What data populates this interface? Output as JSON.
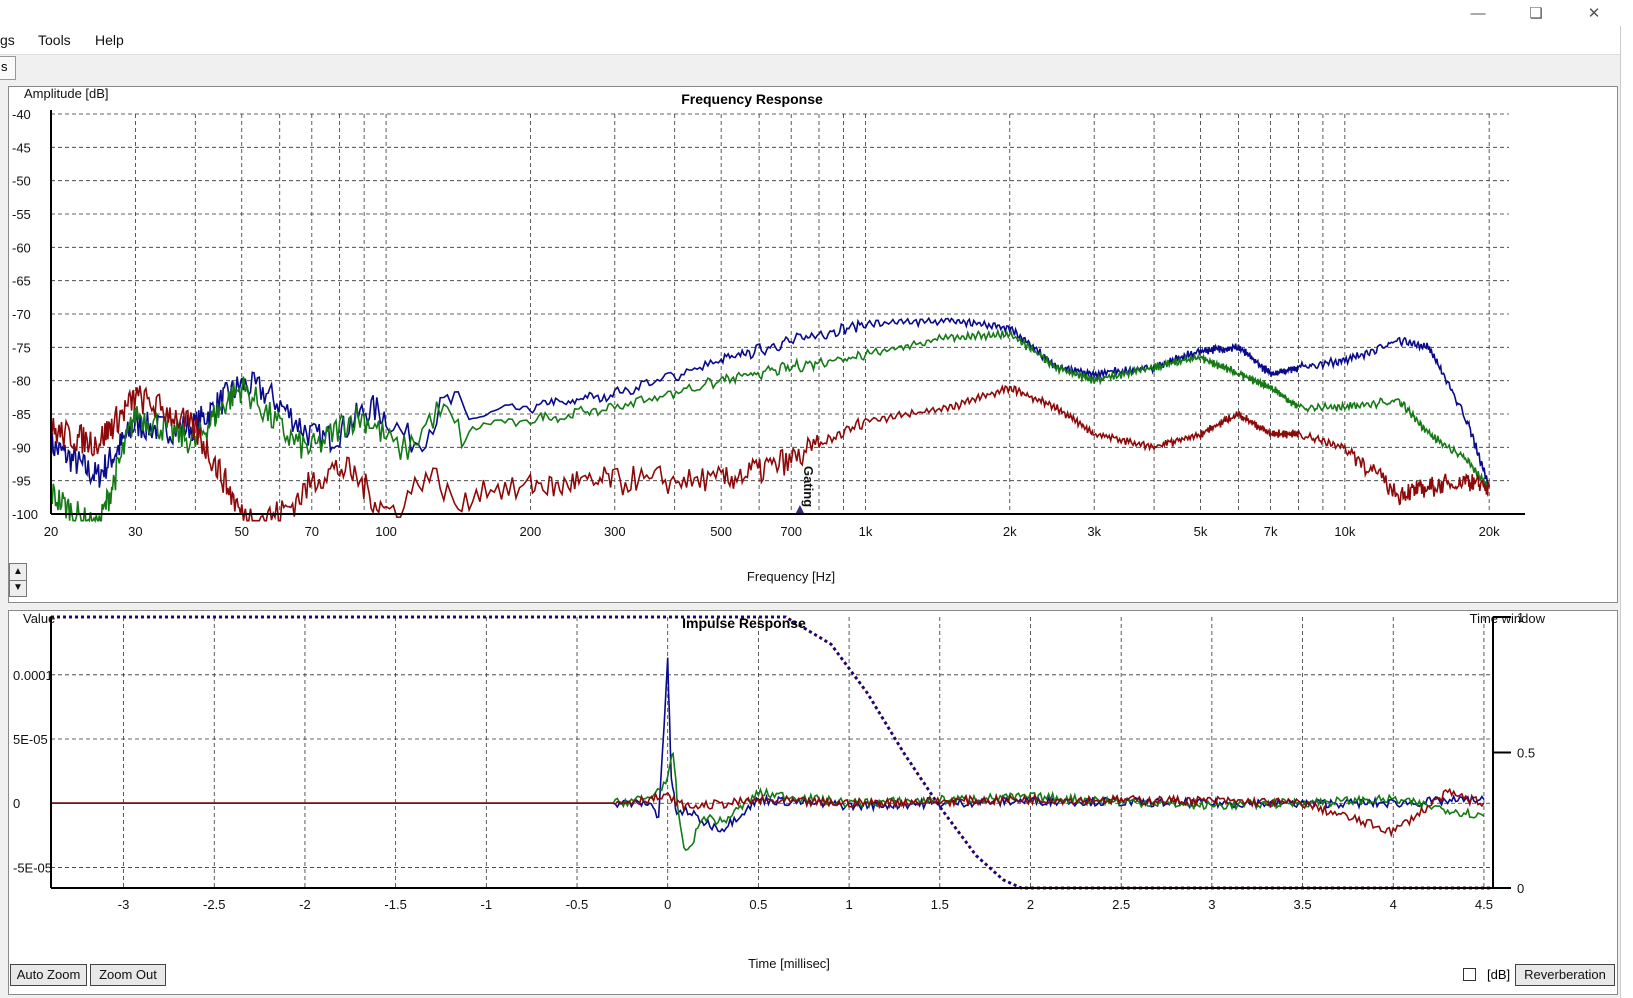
{
  "window": {
    "minimize_icon": "minimize-icon",
    "restore_icon": "restore-icon",
    "close_icon": "close-icon"
  },
  "menu": {
    "items": [
      "gs",
      "Tools",
      "Help"
    ]
  },
  "tabs": [
    "s"
  ],
  "frequency_chart": {
    "title": "Frequency Response",
    "ylabel": "Amplitude [dB]",
    "xlabel": "Frequency [Hz]",
    "marker_label": "Gating",
    "y_ticks": [
      "-40",
      "-45",
      "-50",
      "-55",
      "-60",
      "-65",
      "-70",
      "-75",
      "-80",
      "-85",
      "-90",
      "-95",
      "-100"
    ],
    "x_tick_labels": [
      "20",
      "30",
      "50",
      "70",
      "100",
      "200",
      "300",
      "500",
      "700",
      "1k",
      "2k",
      "3k",
      "5k",
      "7k",
      "10k",
      "20k"
    ]
  },
  "impulse_chart": {
    "title": "Impulse Response",
    "ylabel": "Value",
    "y2label": "Time window",
    "xlabel": "Time [millisec]",
    "y_tick_labels": [
      "0.0001",
      "5E-05",
      "0",
      "-5E-05"
    ],
    "y2_tick_labels": [
      "1",
      "0.5",
      "0"
    ],
    "x_tick_labels": [
      "-3",
      "-2.5",
      "-2",
      "-1.5",
      "-1",
      "-0.5",
      "0",
      "0.5",
      "1",
      "1.5",
      "2",
      "2.5",
      "3",
      "3.5",
      "4",
      "4.5"
    ]
  },
  "buttons": {
    "auto_zoom": "Auto Zoom",
    "zoom_out": "Zoom Out",
    "reverberation": "Reverberation"
  },
  "db_checkbox": {
    "label": "[dB]",
    "checked": false
  },
  "colors": {
    "blue": "#0a0a8c",
    "green": "#157a15",
    "red": "#8c0a0a"
  },
  "chart_data": [
    {
      "type": "line",
      "title": "Frequency Response",
      "xlabel": "Frequency [Hz]",
      "ylabel": "Amplitude [dB]",
      "xscale": "log",
      "xlim": [
        20,
        22000
      ],
      "ylim": [
        -100,
        -40
      ],
      "grid": true,
      "series": [
        {
          "color": "blue",
          "x": [
            20,
            25,
            30,
            40,
            50,
            70,
            100,
            200,
            300,
            500,
            700,
            1000,
            1500,
            2000,
            2500,
            3000,
            4000,
            5000,
            6000,
            7000,
            8000,
            10000,
            13000,
            15000,
            18000,
            20000
          ],
          "y": [
            -90,
            -93,
            -84,
            -86,
            -83,
            -86,
            -87,
            -84,
            -82,
            -77,
            -74,
            -71.5,
            -71,
            -72,
            -78,
            -79,
            -78,
            -75.5,
            -75,
            -79,
            -78,
            -77,
            -74,
            -75,
            -86,
            -96
          ]
        },
        {
          "color": "green",
          "x": [
            20,
            25,
            30,
            40,
            50,
            70,
            100,
            200,
            300,
            500,
            700,
            1000,
            1500,
            2000,
            2500,
            3000,
            4000,
            5000,
            6000,
            7000,
            8000,
            10000,
            13000,
            15000,
            18000,
            20000
          ],
          "y": [
            -95,
            -100,
            -83,
            -91,
            -83,
            -88,
            -88,
            -86,
            -84,
            -80,
            -78,
            -76,
            -73.5,
            -73,
            -78,
            -80,
            -78,
            -76.5,
            -79,
            -81,
            -84,
            -84,
            -83,
            -88,
            -92,
            -96
          ]
        },
        {
          "color": "red",
          "x": [
            20,
            25,
            30,
            40,
            50,
            70,
            100,
            200,
            300,
            500,
            700,
            1000,
            1500,
            2000,
            2500,
            3000,
            4000,
            5000,
            6000,
            7000,
            8000,
            10000,
            13000,
            15000,
            18000,
            20000
          ],
          "y": [
            -85,
            -88,
            -83,
            -90,
            -100,
            -95,
            -97,
            -96,
            -95,
            -95,
            -92,
            -86,
            -84,
            -81,
            -84,
            -88,
            -90,
            -88,
            -85,
            -88,
            -88,
            -90,
            -97,
            -96,
            -95,
            -96
          ]
        }
      ],
      "markers": [
        {
          "label": "Gating",
          "x": 730
        }
      ]
    },
    {
      "type": "line",
      "title": "Impulse Response",
      "xlabel": "Time [millisec]",
      "ylabel": "Value",
      "y2label": "Time window",
      "xlim": [
        -3.4,
        4.55
      ],
      "ylim": [
        -6.6e-05,
        0.000145
      ],
      "y2lim": [
        0,
        1
      ],
      "grid": true,
      "series": [
        {
          "color": "blue",
          "x": [
            -3.4,
            -0.3,
            -0.1,
            -0.05,
            0,
            0.02,
            0.05,
            0.1,
            0.2,
            0.3,
            0.5,
            1,
            2,
            3,
            4,
            4.5
          ],
          "y": [
            0,
            0,
            0,
            -1e-05,
            0.00011,
            2e-05,
            -1e-05,
            -5e-06,
            -1.5e-05,
            -2e-05,
            3e-06,
            -2e-06,
            2e-06,
            0,
            0,
            3e-06
          ]
        },
        {
          "color": "green",
          "x": [
            -3.4,
            -0.3,
            -0.1,
            0,
            0.03,
            0.06,
            0.1,
            0.2,
            0.3,
            0.5,
            1,
            2,
            3,
            4,
            4.5
          ],
          "y": [
            0,
            0,
            4e-06,
            1.8e-05,
            4e-05,
            -1e-05,
            -4e-05,
            -1e-05,
            -1.5e-05,
            8e-06,
            0,
            5e-06,
            -2e-06,
            3e-06,
            -1e-05
          ]
        },
        {
          "color": "red",
          "x": [
            -3.4,
            -0.3,
            0,
            0.1,
            0.5,
            1,
            2,
            3,
            3.5,
            4,
            4.3,
            4.5
          ],
          "y": [
            0,
            0,
            5e-06,
            -3e-06,
            2e-06,
            0,
            3e-06,
            2e-06,
            0,
            -2.2e-05,
            8e-06,
            0
          ]
        },
        {
          "name": "Time window",
          "color": "blue",
          "style": "dashed",
          "axis": "y2",
          "x": [
            -3.4,
            0.65,
            0.9,
            1.1,
            1.3,
            1.5,
            1.7,
            1.85,
            1.95,
            2.0,
            4.55
          ],
          "y": [
            1,
            1,
            0.9,
            0.72,
            0.5,
            0.3,
            0.12,
            0.03,
            0,
            0,
            0
          ]
        }
      ]
    }
  ]
}
